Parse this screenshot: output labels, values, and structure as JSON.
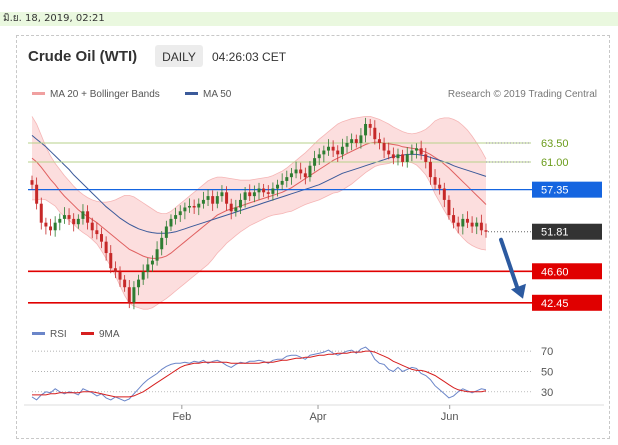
{
  "date_stamp": "มิ.ย. 18, 2019, 02:21",
  "header": {
    "instrument": "Crude Oil (WTI)",
    "timeframe": "DAILY",
    "time": "04:26:03 CET"
  },
  "legend": {
    "ma20_label": "MA 20 + Bollinger Bands",
    "ma50_label": "MA 50",
    "credit": "Research © 2019 Trading Central"
  },
  "colors": {
    "up": "#2e7d32",
    "down": "#c62828",
    "ma50": "#3b5a9a",
    "ma20": "#e06060",
    "band": "#fbd3d3",
    "fib": "#b7d18b",
    "resistance": "#1565e0",
    "support": "#e00000",
    "rsi": "#6b86c9",
    "rsi_ma": "#d61f1f",
    "last_price_bg": "#333333",
    "fib_text": "#6b9c1b"
  },
  "chart_data": [
    {
      "type": "candlestick",
      "title": "Crude Oil (WTI)",
      "xlabel": "",
      "ylabel": "",
      "x_ticks": [
        "Feb",
        "Apr",
        "Jun"
      ],
      "ylim": [
        41.5,
        68.5
      ],
      "grid": false,
      "legend_placement": "top-left",
      "close_series": [
        58.0,
        55.5,
        53.0,
        52.5,
        52.0,
        53.0,
        53.5,
        54.0,
        53.5,
        52.8,
        53.5,
        54.5,
        53.0,
        52.0,
        51.5,
        50.5,
        49.0,
        47.0,
        46.5,
        45.5,
        44.5,
        42.5,
        44.5,
        45.5,
        46.5,
        47.5,
        48.0,
        49.5,
        51.0,
        52.5,
        53.5,
        54.0,
        54.5,
        55.0,
        55.2,
        55.0,
        55.5,
        56.0,
        56.5,
        55.5,
        56.5,
        57.0,
        55.5,
        54.5,
        55.0,
        56.0,
        57.0,
        56.5,
        57.0,
        57.5,
        57.0,
        56.8,
        57.5,
        58.0,
        58.5,
        59.0,
        59.5,
        60.0,
        59.5,
        59.0,
        60.5,
        61.5,
        62.0,
        62.5,
        63.0,
        62.5,
        62.0,
        63.0,
        63.5,
        64.0,
        63.5,
        64.5,
        66.0,
        65.5,
        64.0,
        63.5,
        62.5,
        62.0,
        61.5,
        62.0,
        61.0,
        62.0,
        62.5,
        62.8,
        62.0,
        61.0,
        59.0,
        58.0,
        57.5,
        56.0,
        54.0,
        53.0,
        52.5,
        53.5,
        53.0,
        52.5,
        53.0,
        52.0,
        51.81
      ],
      "ma20": [
        61.5,
        61.0,
        60.3,
        59.5,
        58.7,
        58.0,
        57.2,
        56.5,
        55.9,
        55.3,
        54.7,
        54.2,
        53.8,
        53.4,
        53.0,
        52.5,
        52.0,
        51.5,
        51.0,
        50.5,
        50.0,
        49.5,
        49.2,
        48.9,
        48.6,
        48.4,
        48.3,
        48.3,
        48.4,
        48.6,
        49.0,
        49.5,
        50.0,
        50.5,
        51.0,
        51.5,
        52.0,
        52.5,
        53.0,
        53.5,
        54.0,
        54.3,
        54.6,
        54.8,
        55.0,
        55.2,
        55.4,
        55.6,
        55.8,
        56.0,
        56.2,
        56.4,
        56.6,
        56.8,
        57.0,
        57.3,
        57.6,
        58.0,
        58.4,
        58.8,
        59.2,
        59.6,
        60.0,
        60.4,
        60.8,
        61.2,
        61.5,
        61.8,
        62.1,
        62.4,
        62.7,
        63.0,
        63.3,
        63.5,
        63.6,
        63.6,
        63.5,
        63.4,
        63.3,
        63.2,
        63.0,
        62.9,
        62.8,
        62.7,
        62.5,
        62.3,
        62.0,
        61.6,
        61.2,
        60.7,
        60.2,
        59.6,
        59.0,
        58.4,
        57.8,
        57.2,
        56.6,
        56.0,
        55.4
      ],
      "bb_upper": [
        67.0,
        66.0,
        64.5,
        63.0,
        61.8,
        60.8,
        60.0,
        59.2,
        58.5,
        57.8,
        57.2,
        56.7,
        56.3,
        56.0,
        55.8,
        55.7,
        55.7,
        55.8,
        56.0,
        56.3,
        56.6,
        56.6,
        56.4,
        56.0,
        55.6,
        55.2,
        54.8,
        54.4,
        54.2,
        54.2,
        54.5,
        55.0,
        55.5,
        56.0,
        56.5,
        57.0,
        57.5,
        58.0,
        58.5,
        58.8,
        59.0,
        59.0,
        58.9,
        58.8,
        58.7,
        58.6,
        58.6,
        58.6,
        58.7,
        58.8,
        58.9,
        59.0,
        59.2,
        59.5,
        59.8,
        60.2,
        60.7,
        61.2,
        61.7,
        62.2,
        62.8,
        63.4,
        64.0,
        64.5,
        65.0,
        65.5,
        66.0,
        66.3,
        66.5,
        66.7,
        66.8,
        66.9,
        67.0,
        67.0,
        66.8,
        66.6,
        66.3,
        66.0,
        65.6,
        65.3,
        65.0,
        64.8,
        64.7,
        64.8,
        65.0,
        65.3,
        65.8,
        66.4,
        66.7,
        66.8,
        66.8,
        66.6,
        66.3,
        65.8,
        65.2,
        64.4,
        63.5,
        62.5,
        61.4
      ],
      "bb_lower": [
        56.0,
        56.0,
        56.1,
        56.0,
        55.6,
        55.2,
        54.4,
        53.8,
        53.3,
        52.8,
        52.2,
        51.7,
        51.3,
        50.8,
        50.2,
        49.3,
        48.3,
        47.2,
        46.0,
        44.7,
        43.4,
        42.4,
        42.0,
        41.8,
        41.6,
        41.6,
        41.8,
        42.2,
        42.6,
        43.0,
        43.5,
        44.0,
        44.5,
        45.0,
        45.5,
        46.0,
        46.5,
        47.0,
        47.5,
        48.2,
        49.0,
        49.6,
        50.3,
        50.8,
        51.3,
        51.8,
        52.2,
        52.6,
        52.9,
        53.2,
        53.5,
        53.8,
        54.0,
        54.1,
        54.2,
        54.4,
        54.5,
        54.8,
        55.1,
        55.4,
        55.6,
        55.8,
        56.0,
        56.3,
        56.6,
        56.9,
        57.0,
        57.3,
        57.7,
        58.1,
        58.6,
        59.1,
        59.6,
        60.0,
        60.4,
        60.6,
        60.7,
        60.8,
        61.0,
        61.1,
        61.0,
        61.0,
        60.9,
        60.6,
        60.0,
        59.3,
        58.2,
        56.8,
        55.7,
        54.6,
        53.6,
        52.6,
        51.7,
        51.0,
        50.4,
        50.0,
        49.7,
        49.5,
        49.4
      ],
      "ma50": [
        64.5,
        64.0,
        63.5,
        63.0,
        62.4,
        61.8,
        61.2,
        60.6,
        60.0,
        59.3,
        58.7,
        58.1,
        57.5,
        56.9,
        56.3,
        55.7,
        55.1,
        54.6,
        54.1,
        53.6,
        53.2,
        52.8,
        52.5,
        52.2,
        52.0,
        51.8,
        51.7,
        51.6,
        51.6,
        51.6,
        51.7,
        51.8,
        52.0,
        52.2,
        52.4,
        52.6,
        52.8,
        53.0,
        53.2,
        53.4,
        53.6,
        53.8,
        54.0,
        54.2,
        54.4,
        54.6,
        54.8,
        55.0,
        55.2,
        55.4,
        55.6,
        55.8,
        56.0,
        56.2,
        56.4,
        56.6,
        56.8,
        57.0,
        57.2,
        57.4,
        57.6,
        57.8,
        58.0,
        58.3,
        58.6,
        58.9,
        59.2,
        59.5,
        59.7,
        59.9,
        60.1,
        60.3,
        60.5,
        60.7,
        60.9,
        61.1,
        61.3,
        61.5,
        61.7,
        61.8,
        61.9,
        62.0,
        62.0,
        62.0,
        61.9,
        61.8,
        61.6,
        61.4,
        61.2,
        61.0,
        60.8,
        60.5,
        60.3,
        60.1,
        59.9,
        59.7,
        59.5,
        59.3,
        59.1
      ],
      "levels": [
        {
          "value": 63.5,
          "label": "63.50",
          "kind": "fib"
        },
        {
          "value": 61.0,
          "label": "61.00",
          "kind": "fib"
        },
        {
          "value": 57.35,
          "label": "57.35",
          "kind": "resistance"
        },
        {
          "value": 51.81,
          "label": "51.81",
          "kind": "last"
        },
        {
          "value": 46.6,
          "label": "46.60",
          "kind": "support"
        },
        {
          "value": 42.45,
          "label": "42.45",
          "kind": "support"
        }
      ],
      "forecast_arrow": {
        "from": 51.81,
        "to": 42.45
      }
    },
    {
      "type": "line",
      "title": "",
      "legend": [
        "RSI",
        "9MA"
      ],
      "ylim": [
        18,
        78
      ],
      "y_ticks": [
        "70",
        "50",
        "30"
      ],
      "rsi": [
        25,
        22,
        27,
        30,
        29,
        33,
        30,
        28,
        30,
        29,
        27,
        33,
        31,
        29,
        26,
        28,
        24,
        22,
        25,
        23,
        21,
        23,
        28,
        33,
        38,
        42,
        45,
        48,
        52,
        55,
        57,
        58,
        58,
        59,
        58,
        60,
        59,
        61,
        58,
        60,
        61,
        59,
        56,
        54,
        57,
        59,
        58,
        60,
        60,
        61,
        60,
        58,
        61,
        62,
        62,
        65,
        66,
        66,
        64,
        62,
        66,
        67,
        68,
        69,
        71,
        68,
        66,
        68,
        70,
        71,
        68,
        72,
        74,
        70,
        62,
        58,
        57,
        52,
        50,
        54,
        50,
        52,
        54,
        53,
        48,
        46,
        42,
        36,
        32,
        28,
        24,
        26,
        30,
        33,
        31,
        29,
        31,
        33,
        32
      ],
      "rsi_ma": [
        27,
        27,
        27,
        27,
        28,
        28,
        29,
        29,
        29,
        29,
        29,
        30,
        30,
        30,
        29,
        28,
        27,
        26,
        25,
        25,
        25,
        25,
        26,
        28,
        30,
        33,
        36,
        39,
        42,
        45,
        48,
        51,
        54,
        56,
        57,
        58,
        58,
        59,
        59,
        59,
        59,
        59,
        59,
        58,
        58,
        58,
        58,
        58,
        58,
        58,
        59,
        59,
        59,
        60,
        61,
        61,
        62,
        63,
        63,
        64,
        64,
        65,
        66,
        66,
        67,
        67,
        68,
        68,
        68,
        69,
        69,
        69,
        70,
        70,
        69,
        67,
        65,
        63,
        60,
        58,
        56,
        54,
        52,
        51,
        51,
        50,
        48,
        46,
        43,
        40,
        37,
        34,
        32,
        31,
        30,
        30,
        30,
        30,
        31
      ]
    }
  ]
}
